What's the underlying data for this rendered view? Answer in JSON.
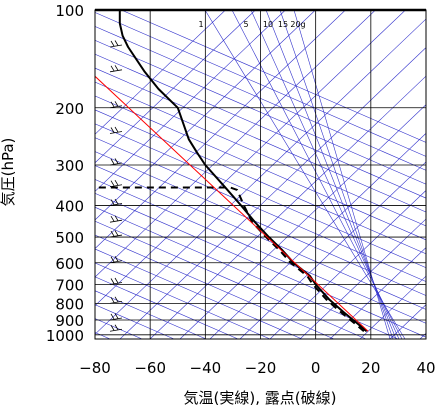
{
  "chart_data": {
    "type": "line",
    "xlabel": "気温(実線), 露点(破線)",
    "ylabel": "気圧(hPa)",
    "xlim": [
      -80,
      40
    ],
    "ylim": [
      1030,
      100
    ],
    "y_scale": "log",
    "grid": true,
    "x_ticks": [
      -80,
      -60,
      -40,
      -20,
      0,
      20,
      40
    ],
    "y_ticks": [
      100,
      200,
      300,
      400,
      500,
      600,
      700,
      800,
      900,
      1000
    ],
    "x_tick_labels": [
      "−80",
      "−60",
      "−40",
      "−20",
      "0",
      "20",
      "40"
    ],
    "y_tick_labels": [
      "100",
      "200",
      "300",
      "400",
      "500",
      "600",
      "700",
      "800",
      "900",
      "1000"
    ],
    "mixing_ratio_labels": [
      "1",
      "5",
      "10",
      "15",
      "20g"
    ],
    "colors": {
      "temperature": "#000000",
      "dewpoint": "#000000",
      "reference_line": "#ff0000",
      "background_lines": "#3333cc",
      "grid": "#000000"
    },
    "series": [
      {
        "style": "solid",
        "color": "#000000",
        "points": [
          [
            18.5,
            975
          ],
          [
            15,
            920
          ],
          [
            10,
            850
          ],
          [
            5,
            780
          ],
          [
            0,
            700
          ],
          [
            -2,
            660
          ],
          [
            -8,
            600
          ],
          [
            -12,
            550
          ],
          [
            -17,
            500
          ],
          [
            -22,
            450
          ],
          [
            -27,
            400
          ],
          [
            -33,
            350
          ],
          [
            -40,
            300
          ],
          [
            -43,
            275
          ],
          [
            -46,
            250
          ],
          [
            -50,
            200
          ],
          [
            -57,
            175
          ],
          [
            -62,
            155
          ],
          [
            -68,
            130
          ],
          [
            -70,
            120
          ],
          [
            -71,
            110
          ],
          [
            -71,
            100
          ]
        ]
      },
      {
        "style": "dashed",
        "color": "#000000",
        "points": [
          [
            17.5,
            975
          ],
          [
            14,
            920
          ],
          [
            9,
            850
          ],
          [
            4,
            780
          ],
          [
            -1,
            700
          ],
          [
            -3,
            660
          ],
          [
            -9,
            600
          ],
          [
            -13,
            550
          ],
          [
            -18,
            500
          ],
          [
            -23,
            450
          ],
          [
            -26,
            400
          ],
          [
            -28.5,
            358
          ],
          [
            -31,
            352
          ],
          [
            -80,
            352
          ]
        ]
      },
      {
        "style": "solid",
        "color": "#ff0000",
        "points": [
          [
            19,
            975
          ],
          [
            -80,
            160
          ]
        ]
      }
    ]
  }
}
